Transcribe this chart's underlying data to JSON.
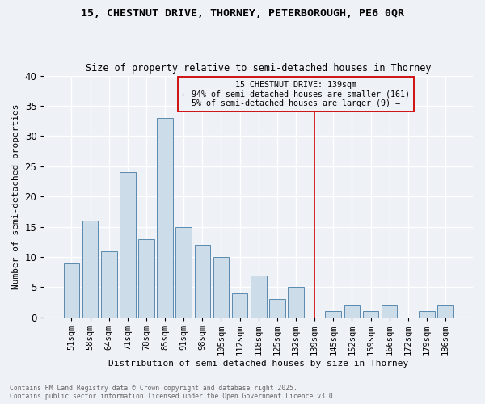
{
  "title1": "15, CHESTNUT DRIVE, THORNEY, PETERBOROUGH, PE6 0QR",
  "title2": "Size of property relative to semi-detached houses in Thorney",
  "xlabel": "Distribution of semi-detached houses by size in Thorney",
  "ylabel": "Number of semi-detached properties",
  "footnote1": "Contains HM Land Registry data © Crown copyright and database right 2025.",
  "footnote2": "Contains public sector information licensed under the Open Government Licence v3.0.",
  "bin_labels": [
    "51sqm",
    "58sqm",
    "64sqm",
    "71sqm",
    "78sqm",
    "85sqm",
    "91sqm",
    "98sqm",
    "105sqm",
    "112sqm",
    "118sqm",
    "125sqm",
    "132sqm",
    "139sqm",
    "145sqm",
    "152sqm",
    "159sqm",
    "166sqm",
    "172sqm",
    "179sqm",
    "186sqm"
  ],
  "values": [
    9,
    16,
    11,
    24,
    13,
    33,
    15,
    12,
    10,
    4,
    7,
    3,
    5,
    0,
    1,
    2,
    1,
    2,
    0,
    1,
    2
  ],
  "bar_color": "#ccdce8",
  "bar_edge_color": "#5a8ab0",
  "vline_x_index": 13,
  "vline_color": "#cc0000",
  "annotation_title": "15 CHESTNUT DRIVE: 139sqm",
  "annotation_line1": "← 94% of semi-detached houses are smaller (161)",
  "annotation_line2": "5% of semi-detached houses are larger (9) →",
  "ylim": [
    0,
    40
  ],
  "yticks": [
    0,
    5,
    10,
    15,
    20,
    25,
    30,
    35,
    40
  ],
  "background_color": "#eef2f7"
}
